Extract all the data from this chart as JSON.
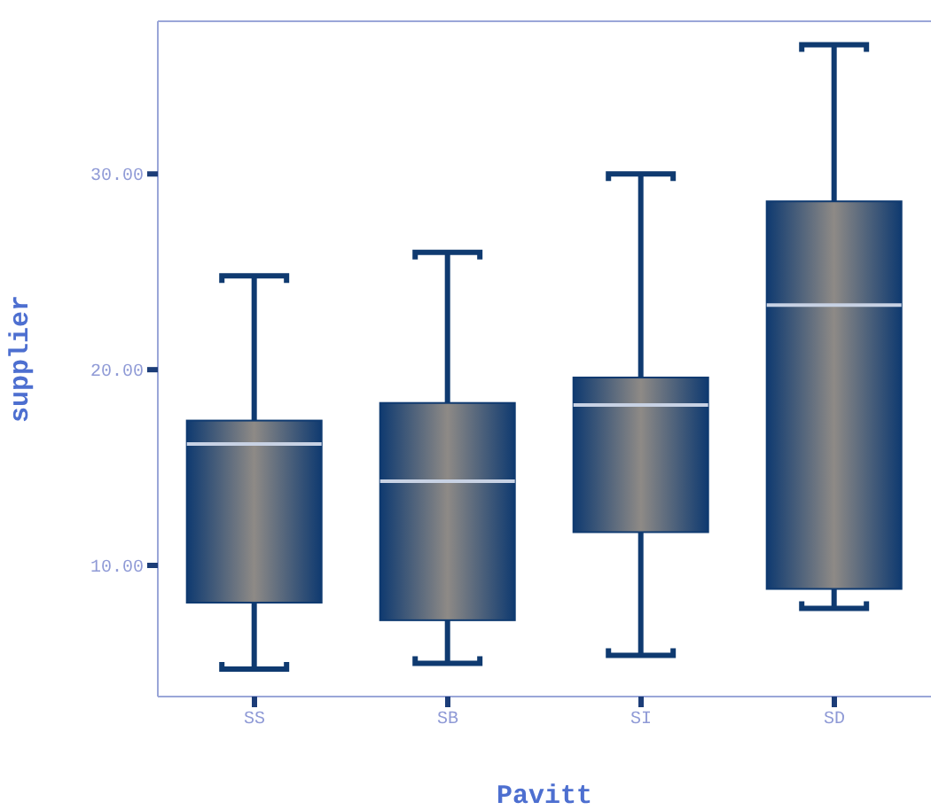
{
  "chart_data": {
    "type": "box",
    "xlabel": "Pavitt",
    "ylabel": "supplier",
    "categories": [
      "SS",
      "SB",
      "SI",
      "SD"
    ],
    "series": [
      {
        "color": "#0f3a70",
        "boxes": [
          {
            "low": 4.7,
            "q1": 8.1,
            "median": 16.2,
            "q3": 17.4,
            "high": 24.8
          },
          {
            "low": 5.0,
            "q1": 7.2,
            "median": 14.3,
            "q3": 18.3,
            "high": 26.0
          },
          {
            "low": 5.4,
            "q1": 11.7,
            "median": 18.2,
            "q3": 19.6,
            "high": 30.0
          },
          {
            "low": 7.8,
            "q1": 8.8,
            "median": 23.3,
            "q3": 28.6,
            "high": 36.6
          }
        ]
      }
    ],
    "ylim": [
      3.3,
      37.8
    ],
    "yticks": [
      {
        "value": 10,
        "label": "10.00"
      },
      {
        "value": 20,
        "label": "20.00"
      },
      {
        "value": 30,
        "label": "30.00"
      }
    ],
    "grid": false,
    "legend": false
  }
}
